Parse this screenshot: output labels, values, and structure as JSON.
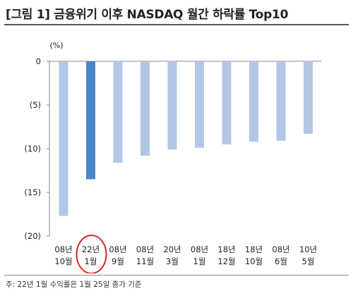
{
  "page": {
    "title": "[그림 1] 금융위기 이후 NASDAQ 월간 하락률 Top10",
    "footnote": "주: 22년 1월 수익률은 1월 25일 종가 기준"
  },
  "chart_data": {
    "type": "bar",
    "unit_label": "(%)",
    "categories": [
      [
        "08년",
        "10월"
      ],
      [
        "22년",
        "1월"
      ],
      [
        "08년",
        "9월"
      ],
      [
        "08년",
        "11월"
      ],
      [
        "20년",
        "3월"
      ],
      [
        "08년",
        "1월"
      ],
      [
        "18년",
        "12월"
      ],
      [
        "18년",
        "10월"
      ],
      [
        "08년",
        "6월"
      ],
      [
        "10년",
        "5월"
      ]
    ],
    "values": [
      -17.7,
      -13.5,
      -11.6,
      -10.8,
      -10.1,
      -9.9,
      -9.5,
      -9.2,
      -9.1,
      -8.3
    ],
    "highlight_index": 1,
    "ylim": [
      -20,
      0
    ],
    "yticks": [
      0,
      -5,
      -10,
      -15,
      -20
    ],
    "ytick_labels": [
      "0",
      "(5)",
      "(10)",
      "(15)",
      "(20)"
    ],
    "colors": {
      "bar": "#b3c6e7",
      "highlight": "#4a86c8",
      "circle": "#d92b2b"
    },
    "grid": false
  }
}
